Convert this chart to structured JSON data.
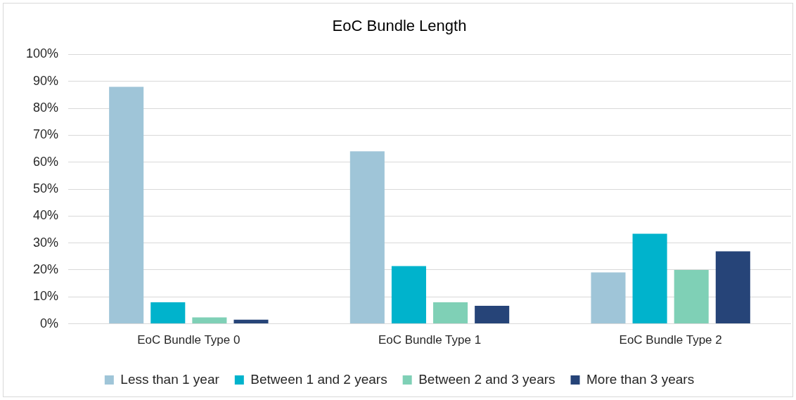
{
  "chart_data": {
    "type": "bar",
    "title": "EoC Bundle Length",
    "categories": [
      "EoC Bundle Type 0",
      "EoC Bundle Type 1",
      "EoC Bundle Type 2"
    ],
    "series": [
      {
        "name": "Less than 1 year",
        "color": "#9fc5d8",
        "values": [
          88,
          64,
          19.1
        ]
      },
      {
        "name": "Between 1 and 2 years",
        "color": "#00b3cc",
        "values": [
          8,
          21.4,
          33.4
        ]
      },
      {
        "name": "Between 2 and 3 years",
        "color": "#7fd0b6",
        "values": [
          2.4,
          8,
          20
        ]
      },
      {
        "name": "More than 3 years",
        "color": "#264478",
        "values": [
          1.5,
          6.7,
          26.9
        ]
      }
    ],
    "ylim": [
      0,
      100
    ],
    "yticks": [
      {
        "value": 0,
        "label": "0%"
      },
      {
        "value": 10,
        "label": "10%"
      },
      {
        "value": 20,
        "label": "20%"
      },
      {
        "value": 30,
        "label": "30%"
      },
      {
        "value": 40,
        "label": "40%"
      },
      {
        "value": 50,
        "label": "50%"
      },
      {
        "value": 60,
        "label": "60%"
      },
      {
        "value": 70,
        "label": "70%"
      },
      {
        "value": 80,
        "label": "80%"
      },
      {
        "value": 90,
        "label": "90%"
      },
      {
        "value": 100,
        "label": "100%"
      }
    ],
    "grid": "y",
    "legend": "bottom"
  }
}
